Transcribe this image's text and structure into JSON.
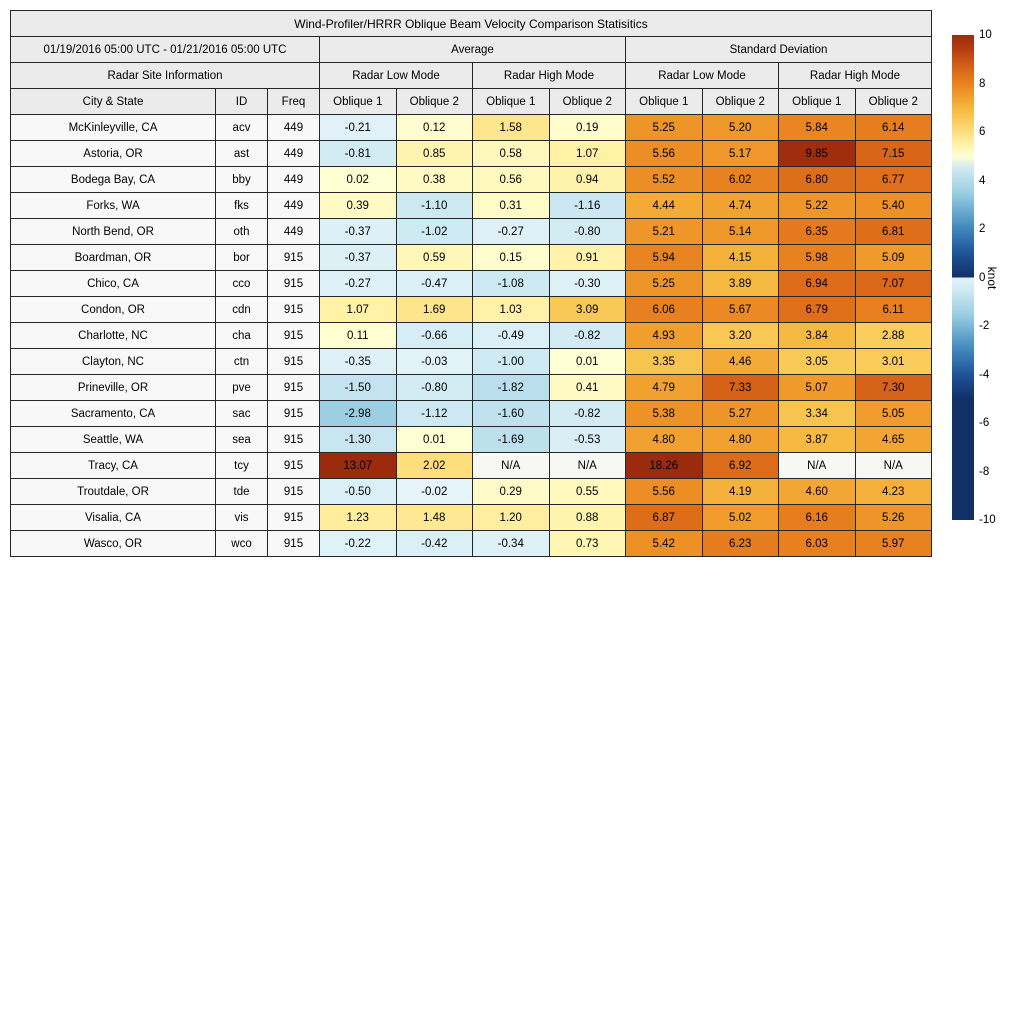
{
  "chart_data": {
    "type": "heatmap",
    "title": "Wind-Profiler/HRRR Oblique Beam Velocity Comparison Statisitics",
    "date_range": "01/19/2016 05:00 UTC - 01/21/2016 05:00 UTC",
    "header": {
      "average": "Average",
      "standard_deviation": "Standard Deviation",
      "radar_site_information": "Radar Site Information",
      "radar_low_mode": "Radar Low Mode",
      "radar_high_mode": "Radar High Mode",
      "city_state": "City & State",
      "id": "ID",
      "freq": "Freq",
      "oblique_1": "Oblique 1",
      "oblique_2": "Oblique 2"
    },
    "value_columns": [
      "avg_low_oblique1",
      "avg_low_oblique2",
      "avg_high_oblique1",
      "avg_high_oblique2",
      "sd_low_oblique1",
      "sd_low_oblique2",
      "sd_high_oblique1",
      "sd_high_oblique2"
    ],
    "rows": [
      {
        "city": "McKinleyville, CA",
        "id": "acv",
        "freq": "449",
        "values": [
          "-0.21",
          "0.12",
          "1.58",
          "0.19",
          "5.25",
          "5.20",
          "5.84",
          "6.14"
        ]
      },
      {
        "city": "Astoria, OR",
        "id": "ast",
        "freq": "449",
        "values": [
          "-0.81",
          "0.85",
          "0.58",
          "1.07",
          "5.56",
          "5.17",
          "9.85",
          "7.15"
        ]
      },
      {
        "city": "Bodega Bay, CA",
        "id": "bby",
        "freq": "449",
        "values": [
          "0.02",
          "0.38",
          "0.56",
          "0.94",
          "5.52",
          "6.02",
          "6.80",
          "6.77"
        ]
      },
      {
        "city": "Forks, WA",
        "id": "fks",
        "freq": "449",
        "values": [
          "0.39",
          "-1.10",
          "0.31",
          "-1.16",
          "4.44",
          "4.74",
          "5.22",
          "5.40"
        ]
      },
      {
        "city": "North Bend, OR",
        "id": "oth",
        "freq": "449",
        "values": [
          "-0.37",
          "-1.02",
          "-0.27",
          "-0.80",
          "5.21",
          "5.14",
          "6.35",
          "6.81"
        ]
      },
      {
        "city": "Boardman, OR",
        "id": "bor",
        "freq": "915",
        "values": [
          "-0.37",
          "0.59",
          "0.15",
          "0.91",
          "5.94",
          "4.15",
          "5.98",
          "5.09"
        ]
      },
      {
        "city": "Chico, CA",
        "id": "cco",
        "freq": "915",
        "values": [
          "-0.27",
          "-0.47",
          "-1.08",
          "-0.30",
          "5.25",
          "3.89",
          "6.94",
          "7.07"
        ]
      },
      {
        "city": "Condon, OR",
        "id": "cdn",
        "freq": "915",
        "values": [
          "1.07",
          "1.69",
          "1.03",
          "3.09",
          "6.06",
          "5.67",
          "6.79",
          "6.11"
        ]
      },
      {
        "city": "Charlotte, NC",
        "id": "cha",
        "freq": "915",
        "values": [
          "0.11",
          "-0.66",
          "-0.49",
          "-0.82",
          "4.93",
          "3.20",
          "3.84",
          "2.88"
        ]
      },
      {
        "city": "Clayton, NC",
        "id": "ctn",
        "freq": "915",
        "values": [
          "-0.35",
          "-0.03",
          "-1.00",
          "0.01",
          "3.35",
          "4.46",
          "3.05",
          "3.01"
        ]
      },
      {
        "city": "Prineville, OR",
        "id": "pve",
        "freq": "915",
        "values": [
          "-1.50",
          "-0.80",
          "-1.82",
          "0.41",
          "4.79",
          "7.33",
          "5.07",
          "7.30"
        ]
      },
      {
        "city": "Sacramento, CA",
        "id": "sac",
        "freq": "915",
        "values": [
          "-2.98",
          "-1.12",
          "-1.60",
          "-0.82",
          "5.38",
          "5.27",
          "3.34",
          "5.05"
        ]
      },
      {
        "city": "Seattle, WA",
        "id": "sea",
        "freq": "915",
        "values": [
          "-1.30",
          "0.01",
          "-1.69",
          "-0.53",
          "4.80",
          "4.80",
          "3.87",
          "4.65"
        ]
      },
      {
        "city": "Tracy, CA",
        "id": "tcy",
        "freq": "915",
        "values": [
          "13.07",
          "2.02",
          "N/A",
          "N/A",
          "18.26",
          "6.92",
          "N/A",
          "N/A"
        ]
      },
      {
        "city": "Troutdale, OR",
        "id": "tde",
        "freq": "915",
        "values": [
          "-0.50",
          "-0.02",
          "0.29",
          "0.55",
          "5.56",
          "4.19",
          "4.60",
          "4.23"
        ]
      },
      {
        "city": "Visalia, CA",
        "id": "vis",
        "freq": "915",
        "values": [
          "1.23",
          "1.48",
          "1.20",
          "0.88",
          "6.87",
          "5.02",
          "6.16",
          "5.26"
        ]
      },
      {
        "city": "Wasco, OR",
        "id": "wco",
        "freq": "915",
        "values": [
          "-0.22",
          "-0.42",
          "-0.34",
          "0.73",
          "5.42",
          "6.23",
          "6.03",
          "5.97"
        ]
      }
    ],
    "colorbar": {
      "label": "knot",
      "min": -10,
      "max": 10,
      "ticks": [
        "10",
        "8",
        "6",
        "4",
        "2",
        "0",
        "-2",
        "-4",
        "-6",
        "-8",
        "-10"
      ],
      "positive_anchors": [
        "#ffffd5",
        "#fff2a8",
        "#fede7c",
        "#f9cb59",
        "#f5b63e",
        "#f09c2c",
        "#e88120",
        "#dc6a19",
        "#c95115",
        "#b03a10",
        "#9c2b0e"
      ],
      "negative_anchors": [
        "#e4f4f8",
        "#cfeaf3",
        "#b5dcea",
        "#9ccfe2",
        "#7cb8d8",
        "#5d9fc9",
        "#3f86bb",
        "#2f6dac",
        "#1f5398",
        "#184180",
        "#113068"
      ],
      "na_color": "#f7f7f4"
    },
    "styles": {
      "header_bg": "#ebebeb",
      "label_bg": "#f8f8f8",
      "border": "#262626"
    }
  }
}
